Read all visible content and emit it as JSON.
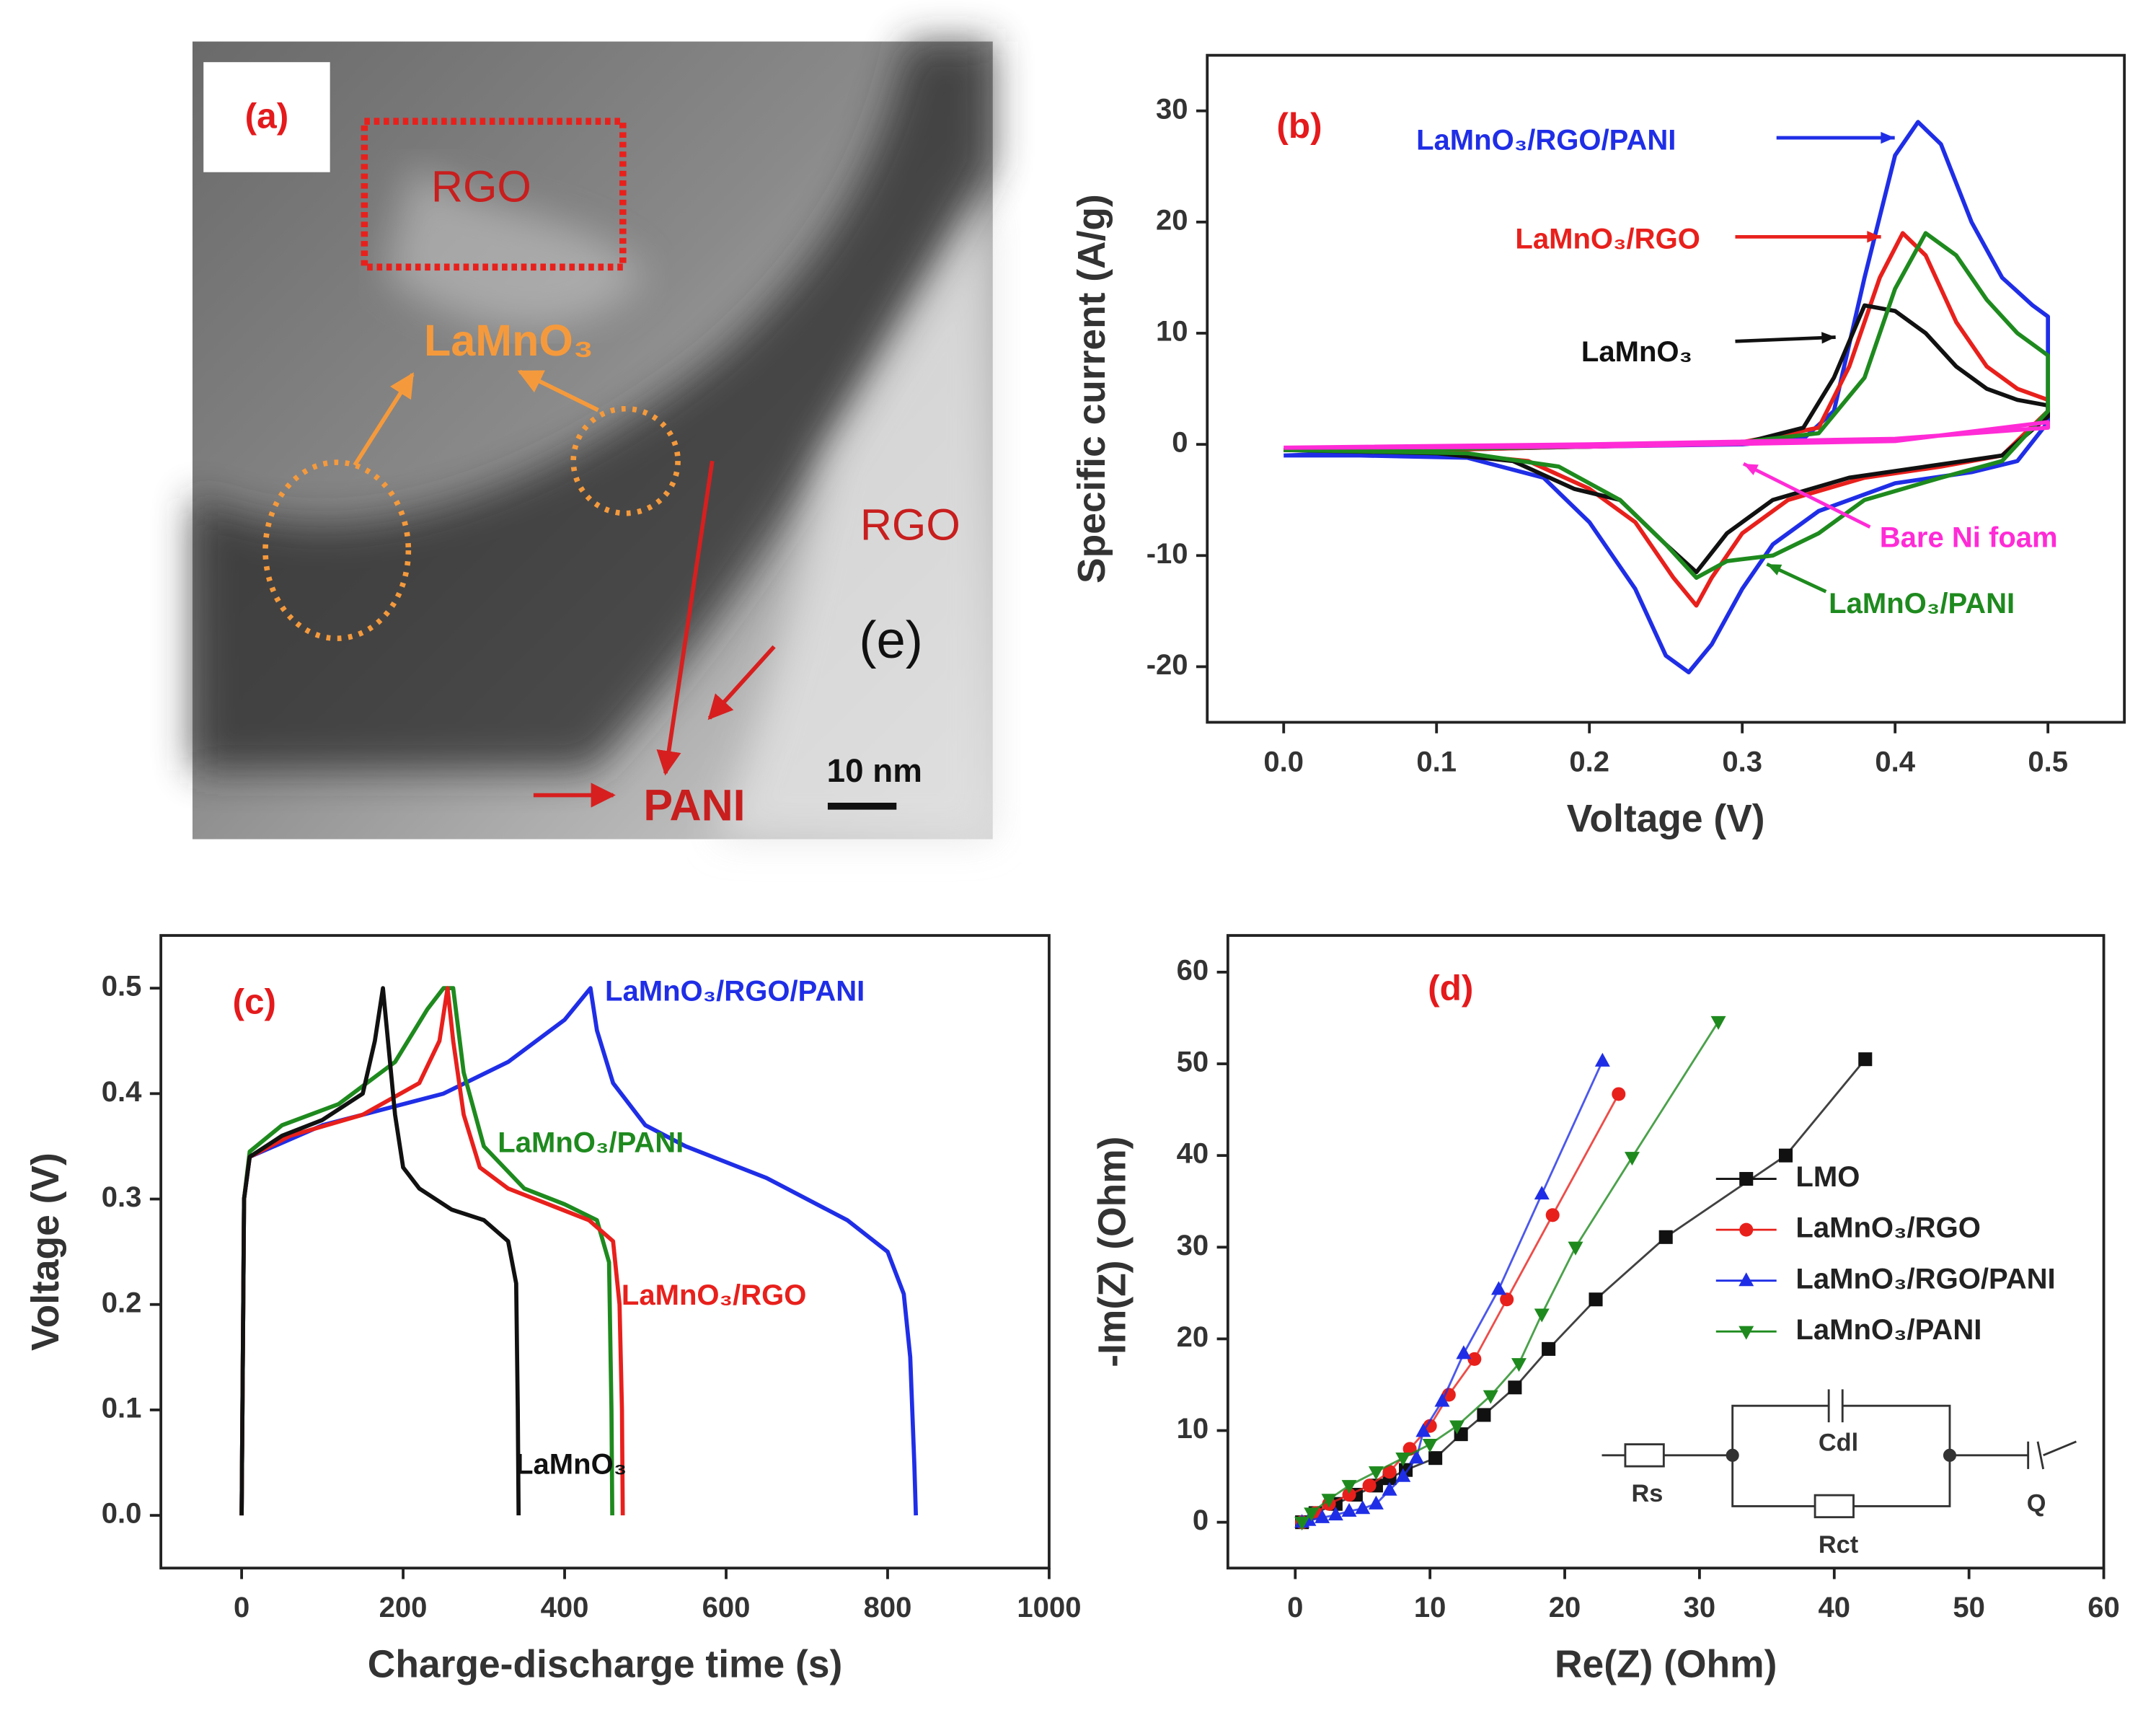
{
  "micrograph": {
    "panel_label": "(a)",
    "labels": [
      "RGO",
      "LaMnO₃",
      "RGO",
      "(e)",
      "PANI"
    ],
    "scale_bar": "10 nm"
  },
  "chart_data": [
    {
      "type": "line",
      "panel_label": "(b)",
      "x_label": "Voltage (V)",
      "y_label": "Specific current (A/g)",
      "xlim": [
        -0.05,
        0.55
      ],
      "ylim": [
        -25,
        35
      ],
      "xticks": [
        {
          "value": 0,
          "label": "0.0"
        },
        0.1,
        0.2,
        0.3,
        0.4,
        0.5
      ],
      "yticks": [
        -20,
        -10,
        0,
        10,
        20,
        30
      ],
      "series": [
        {
          "name": "LaMnO₃/RGO/PANI",
          "color": "#1f2ee6",
          "x": [
            0,
            0.1,
            0.2,
            0.3,
            0.34,
            0.36,
            0.38,
            0.4,
            0.415,
            0.43,
            0.45,
            0.47,
            0.49,
            0.5,
            0.5,
            0.48,
            0.45,
            0.4,
            0.35,
            0.32,
            0.3,
            0.28,
            0.265,
            0.25,
            0.23,
            0.2,
            0.17,
            0.12,
            0.05,
            0
          ],
          "values": [
            -1,
            -0.5,
            -0.2,
            0,
            0.5,
            3,
            15,
            26,
            29,
            27,
            20,
            15,
            12.5,
            11.5,
            2,
            -1.5,
            -2.5,
            -3.5,
            -6,
            -9,
            -13,
            -18,
            -20.5,
            -19,
            -13,
            -7,
            -3,
            -1.2,
            -1,
            -1
          ]
        },
        {
          "name": "LaMnO₃/RGO",
          "color": "#e8201c",
          "x": [
            0,
            0.1,
            0.2,
            0.3,
            0.35,
            0.37,
            0.39,
            0.405,
            0.42,
            0.44,
            0.46,
            0.48,
            0.5,
            0.5,
            0.47,
            0.43,
            0.38,
            0.33,
            0.3,
            0.28,
            0.27,
            0.255,
            0.23,
            0.2,
            0.16,
            0.1,
            0
          ],
          "values": [
            -0.5,
            -0.5,
            -0.2,
            0.2,
            1.5,
            7,
            15,
            19,
            17,
            11,
            7,
            5,
            4,
            3,
            -1,
            -2,
            -3,
            -5,
            -8,
            -12,
            -14.5,
            -12,
            -7,
            -4,
            -1.5,
            -0.7,
            -0.5
          ]
        },
        {
          "name": "LaMnO₃",
          "color": "#111111",
          "x": [
            0,
            0.1,
            0.2,
            0.3,
            0.34,
            0.36,
            0.38,
            0.4,
            0.42,
            0.44,
            0.46,
            0.48,
            0.5,
            0.5,
            0.47,
            0.42,
            0.37,
            0.32,
            0.29,
            0.27,
            0.25,
            0.22,
            0.19,
            0.15,
            0.1,
            0
          ],
          "values": [
            -0.5,
            -0.4,
            -0.2,
            0.1,
            1.5,
            6,
            12.5,
            12,
            10,
            7,
            5,
            4,
            3.5,
            2.5,
            -1,
            -2,
            -3,
            -5,
            -8,
            -11.5,
            -9,
            -5,
            -4,
            -1.5,
            -0.8,
            -0.5
          ]
        },
        {
          "name": "LaMnO₃/PANI",
          "color": "#1e8a1e",
          "x": [
            0,
            0.1,
            0.2,
            0.3,
            0.35,
            0.38,
            0.4,
            0.42,
            0.44,
            0.46,
            0.48,
            0.5,
            0.5,
            0.47,
            0.43,
            0.38,
            0.35,
            0.32,
            0.29,
            0.27,
            0.25,
            0.22,
            0.18,
            0.12,
            0
          ],
          "values": [
            -0.5,
            -0.4,
            -0.2,
            0.2,
            1,
            6,
            14,
            19,
            17,
            13,
            10,
            8,
            3,
            -1.5,
            -3,
            -5,
            -8,
            -10,
            -10.5,
            -12,
            -9,
            -5,
            -2,
            -0.8,
            -0.5
          ]
        },
        {
          "name": "Bare Ni foam",
          "color": "#ff2bd6",
          "x": [
            0,
            0.2,
            0.4,
            0.5,
            0.5,
            0.4,
            0.2,
            0
          ],
          "values": [
            -0.3,
            -0.2,
            0.3,
            2,
            1.5,
            0.5,
            0,
            -0.3
          ]
        }
      ]
    },
    {
      "type": "line",
      "panel_label": "(c)",
      "x_label": "Charge-discharge time (s)",
      "y_label": "Voltage (V)",
      "xlim": [
        -100,
        1000
      ],
      "ylim": [
        -0.05,
        0.55
      ],
      "xticks": [
        0,
        200,
        400,
        600,
        800,
        1000
      ],
      "yticks": [
        {
          "value": 0,
          "label": "0.0"
        },
        0.1,
        0.2,
        0.3,
        0.4,
        0.5
      ],
      "series": [
        {
          "name": "LaMnO₃/RGO/PANI",
          "color": "#1f2ee6",
          "x": [
            0,
            3,
            10,
            100,
            250,
            330,
            400,
            432,
            440,
            460,
            500,
            550,
            650,
            750,
            800,
            820,
            828,
            833,
            835
          ],
          "values": [
            0,
            0.3,
            0.34,
            0.37,
            0.4,
            0.43,
            0.47,
            0.5,
            0.46,
            0.41,
            0.37,
            0.35,
            0.32,
            0.28,
            0.25,
            0.21,
            0.15,
            0.05,
            0
          ]
        },
        {
          "name": "LaMnO₃/PANI",
          "color": "#1e8a1e",
          "x": [
            0,
            3,
            10,
            50,
            120,
            190,
            230,
            250,
            262,
            275,
            300,
            350,
            400,
            440,
            455,
            458,
            459
          ],
          "values": [
            0,
            0.3,
            0.345,
            0.37,
            0.39,
            0.43,
            0.48,
            0.5,
            0.5,
            0.42,
            0.35,
            0.31,
            0.295,
            0.28,
            0.24,
            0.1,
            0
          ]
        },
        {
          "name": "LaMnO₃/RGO",
          "color": "#e8201c",
          "x": [
            0,
            3,
            10,
            60,
            150,
            220,
            245,
            255,
            262,
            275,
            295,
            330,
            380,
            430,
            460,
            468,
            471,
            472
          ],
          "values": [
            0,
            0.3,
            0.34,
            0.36,
            0.38,
            0.41,
            0.45,
            0.5,
            0.45,
            0.38,
            0.33,
            0.31,
            0.295,
            0.28,
            0.26,
            0.2,
            0.1,
            0
          ]
        },
        {
          "name": "LaMnO₃",
          "color": "#111111",
          "x": [
            0,
            3,
            10,
            50,
            100,
            150,
            165,
            175,
            180,
            190,
            200,
            220,
            260,
            300,
            330,
            340,
            342,
            343
          ],
          "values": [
            0,
            0.3,
            0.34,
            0.36,
            0.375,
            0.4,
            0.45,
            0.5,
            0.46,
            0.38,
            0.33,
            0.31,
            0.29,
            0.28,
            0.26,
            0.22,
            0.1,
            0
          ]
        }
      ]
    },
    {
      "type": "line",
      "panel_label": "(d)",
      "x_label": "Re(Z) (Ohm)",
      "y_label": "-Im(Z) (Ohm)",
      "xlim": [
        -5,
        60
      ],
      "ylim": [
        -5,
        64
      ],
      "xticks": [
        0,
        10,
        20,
        30,
        40,
        50,
        60
      ],
      "yticks": [
        0,
        10,
        20,
        30,
        40,
        50,
        60
      ],
      "circuit": [
        "Rs",
        "Cdl",
        "Rct",
        "Q"
      ],
      "series": [
        {
          "name": "LMO",
          "color": "#111111",
          "marker": "square",
          "x": [
            0.5,
            1.5,
            3,
            4.5,
            6,
            7,
            8.2,
            10.4,
            12.3,
            14,
            16.3,
            18.8,
            22.3,
            27.5,
            36.4,
            42.3
          ],
          "values": [
            0,
            1,
            2,
            3,
            4,
            4.8,
            5.7,
            7,
            9.6,
            11.7,
            14.7,
            18.9,
            24.3,
            31.1,
            40,
            50.5
          ]
        },
        {
          "name": "LaMnO₃/RGO",
          "color": "#e8201c",
          "marker": "circle",
          "x": [
            0.5,
            1.5,
            2.5,
            4,
            5.5,
            7,
            8.5,
            10,
            11.4,
            13.3,
            15.7,
            19.1,
            24
          ],
          "values": [
            0,
            1,
            2,
            3,
            4,
            5.5,
            8,
            10.5,
            13.9,
            17.8,
            24.3,
            33.5,
            46.7
          ]
        },
        {
          "name": "LaMnO₃/RGO/PANI",
          "color": "#1f2ee6",
          "marker": "triangle-up",
          "x": [
            0.5,
            1,
            2,
            3,
            4,
            5,
            6,
            7,
            8,
            9,
            9.5,
            10.9,
            12.5,
            15.1,
            18.3,
            22.8
          ],
          "values": [
            0,
            0.2,
            0.5,
            0.8,
            1.2,
            1.5,
            2,
            3.5,
            5,
            7,
            9.9,
            13.2,
            18.4,
            25.4,
            35.8,
            50.3
          ]
        },
        {
          "name": "LaMnO₃/PANI",
          "color": "#1e8a1e",
          "marker": "triangle-down",
          "x": [
            0.5,
            1.2,
            2.5,
            4,
            6,
            8,
            10,
            12,
            14.5,
            16.6,
            18.3,
            20.8,
            25,
            31.4
          ],
          "values": [
            0,
            1,
            2.5,
            4,
            5.5,
            7,
            8.5,
            10.5,
            13.8,
            17.3,
            22.7,
            30,
            39.8,
            54.6
          ]
        }
      ]
    }
  ]
}
